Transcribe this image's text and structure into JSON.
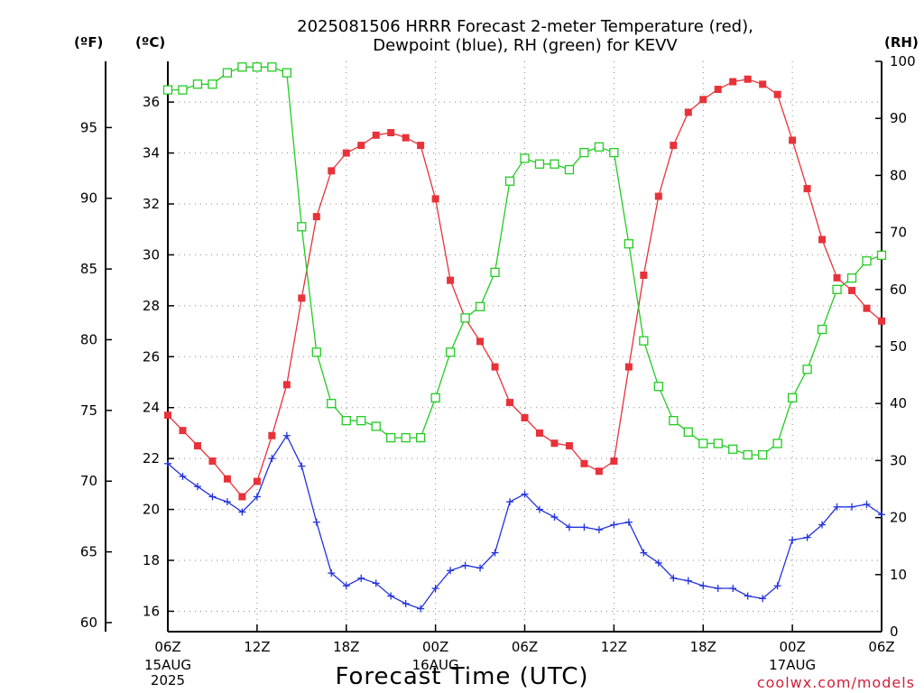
{
  "title_line1": "2025081506 HRRR Forecast 2-meter Temperature (red),",
  "title_line2": "Dewpoint (blue), RH (green) for KEVV",
  "unit_f": "(ºF)",
  "unit_c": "(ºC)",
  "unit_rh": "(RH)",
  "xlabel": "Forecast Time (UTC)",
  "credit": "coolwx.com/models",
  "date_labels": [
    {
      "at": 0,
      "lines": [
        "15AUG",
        "2025"
      ]
    },
    {
      "at": 18,
      "lines": [
        "16AUG"
      ]
    },
    {
      "at": 42,
      "lines": [
        "17AUG"
      ]
    }
  ],
  "colors": {
    "temperature": "#e8323a",
    "dewpoint": "#2233dd",
    "rh": "#22cc22"
  },
  "chart_data": {
    "type": "line",
    "x_label": "Forecast Time (UTC)",
    "x_hours": [
      0,
      1,
      2,
      3,
      4,
      5,
      6,
      7,
      8,
      9,
      10,
      11,
      12,
      13,
      14,
      15,
      16,
      17,
      18,
      19,
      20,
      21,
      22,
      23,
      24,
      25,
      26,
      27,
      28,
      29,
      30,
      31,
      32,
      33,
      34,
      35,
      36,
      37,
      38,
      39,
      40,
      41,
      42,
      43,
      44,
      45,
      46,
      47,
      48
    ],
    "x_ticks": [
      {
        "hour": 0,
        "label": "06Z"
      },
      {
        "hour": 6,
        "label": "12Z"
      },
      {
        "hour": 12,
        "label": "18Z"
      },
      {
        "hour": 18,
        "label": "00Z"
      },
      {
        "hour": 24,
        "label": "06Z"
      },
      {
        "hour": 30,
        "label": "12Z"
      },
      {
        "hour": 36,
        "label": "18Z"
      },
      {
        "hour": 42,
        "label": "00Z"
      },
      {
        "hour": 48,
        "label": "06Z"
      }
    ],
    "y_left_c": {
      "range": [
        15.2,
        37.6
      ],
      "ticks": [
        16,
        18,
        20,
        22,
        24,
        26,
        28,
        30,
        32,
        34,
        36
      ]
    },
    "y_left_f": {
      "ticks": [
        60,
        65,
        70,
        75,
        80,
        85,
        90,
        95
      ]
    },
    "y_right_rh": {
      "range": [
        0,
        100
      ],
      "ticks": [
        0,
        10,
        20,
        30,
        40,
        50,
        60,
        70,
        80,
        90,
        100
      ]
    },
    "grid": true,
    "series": [
      {
        "name": "Temperature",
        "unit": "°C",
        "axis": "c",
        "marker": "filled-square",
        "values": [
          23.7,
          23.1,
          22.5,
          21.9,
          21.2,
          20.5,
          21.1,
          22.9,
          24.9,
          28.3,
          31.5,
          33.3,
          34.0,
          34.3,
          34.7,
          34.8,
          34.6,
          34.3,
          32.2,
          29.0,
          27.5,
          26.6,
          25.6,
          24.2,
          23.6,
          23.0,
          22.6,
          22.5,
          21.8,
          21.5,
          21.9,
          25.6,
          29.2,
          32.3,
          34.3,
          35.6,
          36.1,
          36.5,
          36.8,
          36.9,
          36.7,
          36.3,
          34.5,
          32.6,
          30.6,
          29.1,
          28.6,
          27.9,
          27.4
        ]
      },
      {
        "name": "Dewpoint",
        "unit": "°C",
        "axis": "c",
        "marker": "plus",
        "values": [
          21.8,
          21.3,
          20.9,
          20.5,
          20.3,
          19.9,
          20.5,
          22.0,
          22.9,
          21.7,
          19.5,
          17.5,
          17.0,
          17.3,
          17.1,
          16.6,
          16.3,
          16.1,
          16.9,
          17.6,
          17.8,
          17.7,
          18.3,
          20.3,
          20.6,
          20.0,
          19.7,
          19.3,
          19.3,
          19.2,
          19.4,
          19.5,
          18.3,
          17.9,
          17.3,
          17.2,
          17.0,
          16.9,
          16.9,
          16.6,
          16.5,
          17.0,
          18.8,
          18.9,
          19.4,
          20.1,
          20.1,
          20.2,
          19.8
        ]
      },
      {
        "name": "RH",
        "unit": "%",
        "axis": "rh",
        "marker": "open-square",
        "values": [
          95,
          95,
          96,
          96,
          98,
          99,
          99,
          99,
          98,
          71,
          49,
          40,
          37,
          37,
          36,
          34,
          34,
          34,
          41,
          49,
          55,
          57,
          63,
          79,
          83,
          82,
          82,
          81,
          84,
          85,
          84,
          68,
          51,
          43,
          37,
          35,
          33,
          33,
          32,
          31,
          31,
          33,
          41,
          46,
          53,
          60,
          62,
          65,
          66
        ]
      }
    ]
  }
}
